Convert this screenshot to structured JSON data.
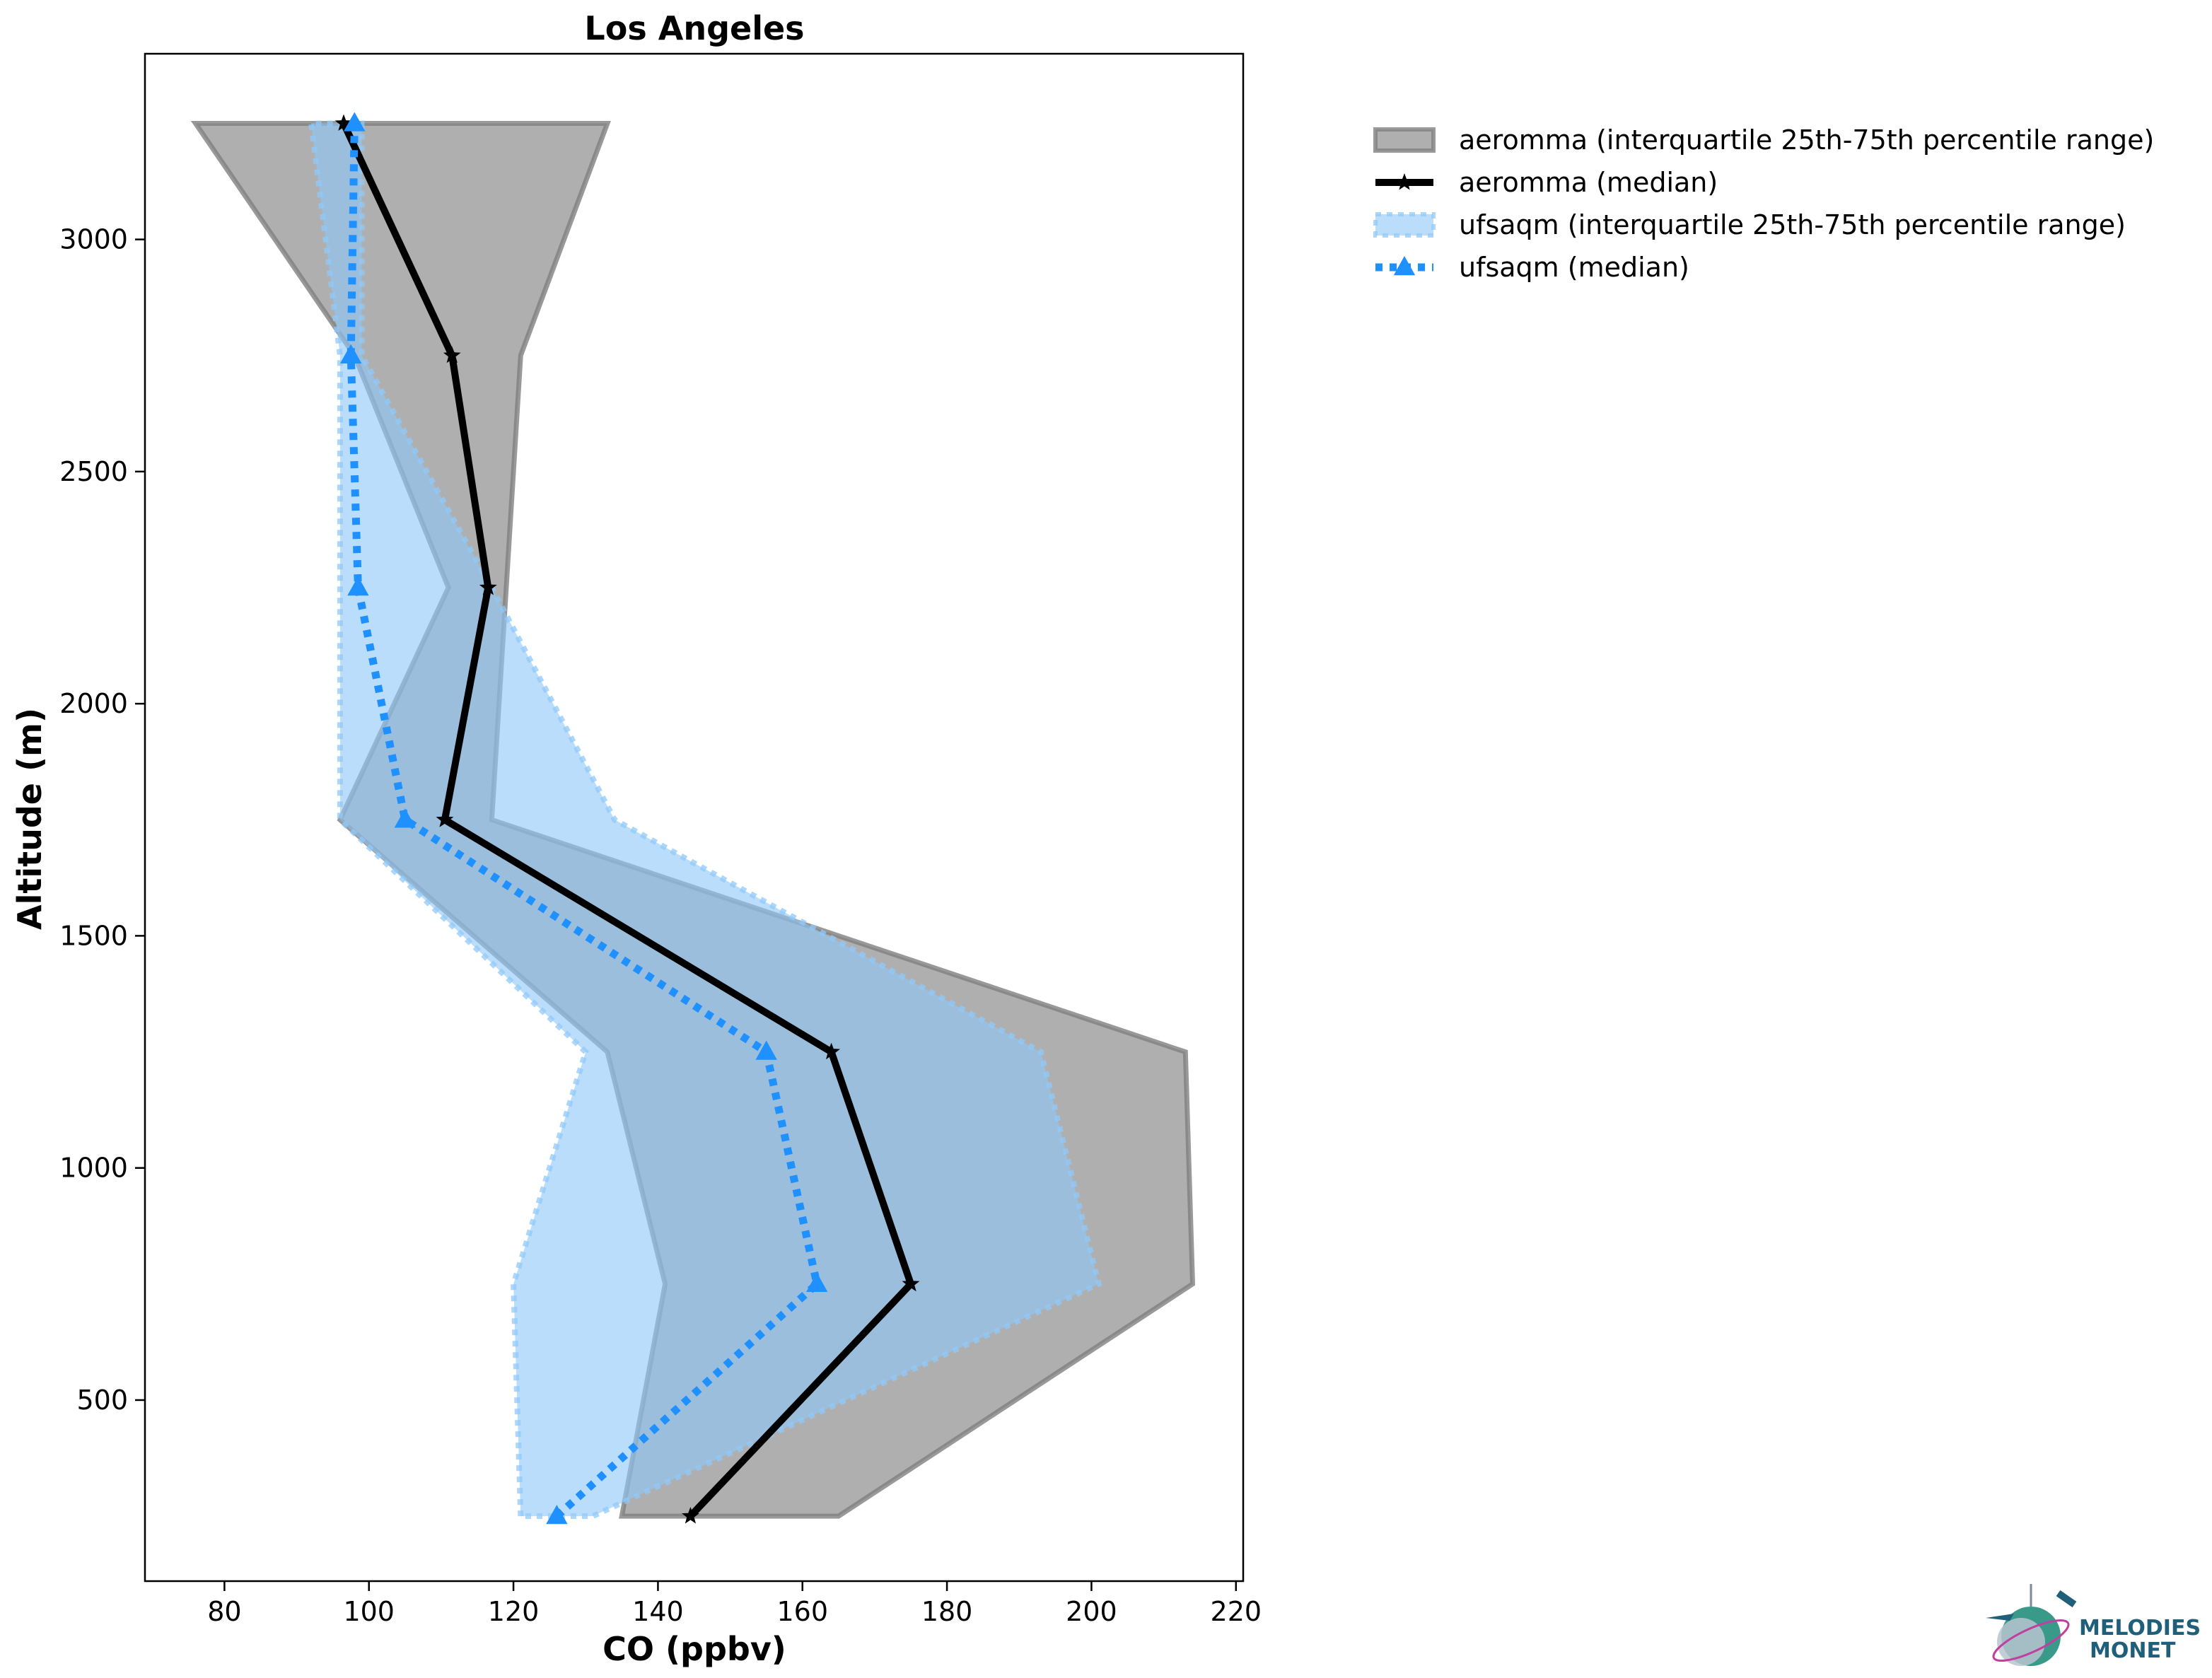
{
  "chart_data": {
    "type": "line",
    "title": "Los Angeles",
    "xlabel": "CO (ppbv)",
    "ylabel": "Altitude (m)",
    "xlim": [
      69,
      221
    ],
    "ylim": [
      110,
      3400
    ],
    "xticks": [
      80,
      100,
      120,
      140,
      160,
      180,
      200,
      220
    ],
    "yticks": [
      500,
      1000,
      1500,
      2000,
      2500,
      3000
    ],
    "grid": false,
    "legend_position": "outside-right",
    "altitudes": [
      250,
      750,
      1250,
      1750,
      2250,
      2750,
      3250
    ],
    "series": [
      {
        "name": "aeromma (interquartile 25th-75th percentile range)",
        "kind": "band",
        "p25": [
          135,
          141,
          133,
          96,
          111,
          98,
          76
        ],
        "p75": [
          165,
          214,
          213,
          117,
          119,
          121,
          133
        ],
        "color": "#999999"
      },
      {
        "name": "aeromma (median)",
        "kind": "line",
        "marker": "star",
        "values": [
          144.5,
          175,
          164,
          110.5,
          116.5,
          111.5,
          96.5
        ],
        "color": "#000000"
      },
      {
        "name": "ufsaqm (interquartile 25th-75th percentile range)",
        "kind": "band",
        "p25": [
          121,
          120,
          130,
          96,
          96,
          96,
          92
        ],
        "p75": [
          131,
          201,
          193,
          134,
          117,
          99,
          99
        ],
        "color": "#90c8f8"
      },
      {
        "name": "ufsaqm (median)",
        "kind": "line",
        "marker": "triangle",
        "values": [
          126,
          162,
          155,
          105,
          98.5,
          97.5,
          98
        ],
        "color": "#1e90ff"
      }
    ]
  },
  "logo": {
    "line1": "MELODIES",
    "line2": "MONET"
  }
}
